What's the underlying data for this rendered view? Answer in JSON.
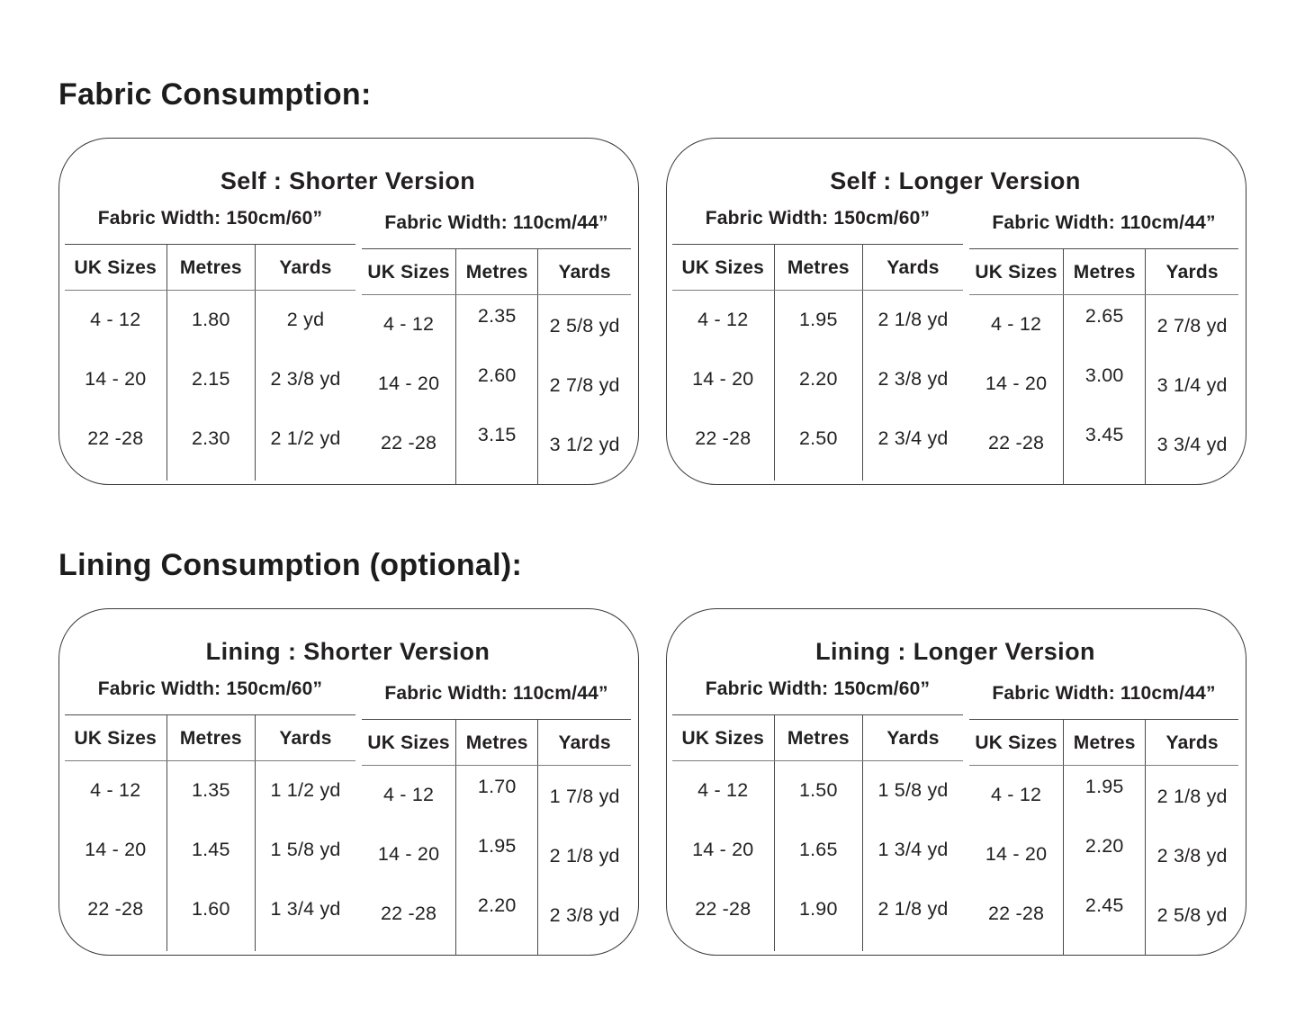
{
  "colors": {
    "text": "#221F20",
    "table_line": "#4A4A4A",
    "box_border": "#3A3A3A",
    "background": "#FFFFFF"
  },
  "page": {
    "sections": [
      {
        "heading": "Fabric Consumption:",
        "boxes": [
          {
            "title": "Self : Shorter Version",
            "tables": [
              {
                "caption": "Fabric Width: 150cm/60”",
                "headers": [
                  "UK Sizes",
                  "Metres",
                  "Yards"
                ],
                "rows": [
                  [
                    "4 - 12",
                    "1.80",
                    "2 yd"
                  ],
                  [
                    "14 - 20",
                    "2.15",
                    "2 3/8 yd"
                  ],
                  [
                    "22 -28",
                    "2.30",
                    "2 1/2 yd"
                  ]
                ]
              },
              {
                "caption": "Fabric Width: 110cm/44”",
                "headers": [
                  "UK Sizes",
                  "Metres",
                  "Yards"
                ],
                "rows": [
                  [
                    "4 - 12",
                    "2.35",
                    "2 5/8 yd"
                  ],
                  [
                    "14 - 20",
                    "2.60",
                    "2 7/8 yd"
                  ],
                  [
                    "22 -28",
                    "3.15",
                    "3 1/2 yd"
                  ]
                ]
              }
            ]
          },
          {
            "title": "Self : Longer Version",
            "tables": [
              {
                "caption": "Fabric Width: 150cm/60”",
                "headers": [
                  "UK Sizes",
                  "Metres",
                  "Yards"
                ],
                "rows": [
                  [
                    "4 - 12",
                    "1.95",
                    "2 1/8 yd"
                  ],
                  [
                    "14 - 20",
                    "2.20",
                    "2 3/8 yd"
                  ],
                  [
                    "22 -28",
                    "2.50",
                    "2 3/4 yd"
                  ]
                ]
              },
              {
                "caption": "Fabric Width: 110cm/44”",
                "headers": [
                  "UK Sizes",
                  "Metres",
                  "Yards"
                ],
                "rows": [
                  [
                    "4 - 12",
                    "2.65",
                    "2 7/8 yd"
                  ],
                  [
                    "14 - 20",
                    "3.00",
                    "3 1/4 yd"
                  ],
                  [
                    "22 -28",
                    "3.45",
                    "3 3/4 yd"
                  ]
                ]
              }
            ]
          }
        ]
      },
      {
        "heading": "Lining Consumption (optional):",
        "boxes": [
          {
            "title": "Lining : Shorter Version",
            "tables": [
              {
                "caption": "Fabric Width: 150cm/60”",
                "headers": [
                  "UK Sizes",
                  "Metres",
                  "Yards"
                ],
                "rows": [
                  [
                    "4 - 12",
                    "1.35",
                    "1 1/2 yd"
                  ],
                  [
                    "14 - 20",
                    "1.45",
                    "1 5/8 yd"
                  ],
                  [
                    "22 -28",
                    "1.60",
                    "1 3/4 yd"
                  ]
                ]
              },
              {
                "caption": "Fabric Width: 110cm/44”",
                "headers": [
                  "UK Sizes",
                  "Metres",
                  "Yards"
                ],
                "rows": [
                  [
                    "4 - 12",
                    "1.70",
                    "1 7/8 yd"
                  ],
                  [
                    "14 - 20",
                    "1.95",
                    "2 1/8 yd"
                  ],
                  [
                    "22 -28",
                    "2.20",
                    "2 3/8 yd"
                  ]
                ]
              }
            ]
          },
          {
            "title": "Lining : Longer Version",
            "tables": [
              {
                "caption": "Fabric Width: 150cm/60”",
                "headers": [
                  "UK Sizes",
                  "Metres",
                  "Yards"
                ],
                "rows": [
                  [
                    "4 - 12",
                    "1.50",
                    "1 5/8 yd"
                  ],
                  [
                    "14 - 20",
                    "1.65",
                    "1 3/4 yd"
                  ],
                  [
                    "22 -28",
                    "1.90",
                    "2 1/8 yd"
                  ]
                ]
              },
              {
                "caption": "Fabric Width: 110cm/44”",
                "headers": [
                  "UK Sizes",
                  "Metres",
                  "Yards"
                ],
                "rows": [
                  [
                    "4 - 12",
                    "1.95",
                    "2 1/8 yd"
                  ],
                  [
                    "14 - 20",
                    "2.20",
                    "2 3/8 yd"
                  ],
                  [
                    "22 -28",
                    "2.45",
                    "2 5/8 yd"
                  ]
                ]
              }
            ]
          }
        ]
      }
    ]
  }
}
